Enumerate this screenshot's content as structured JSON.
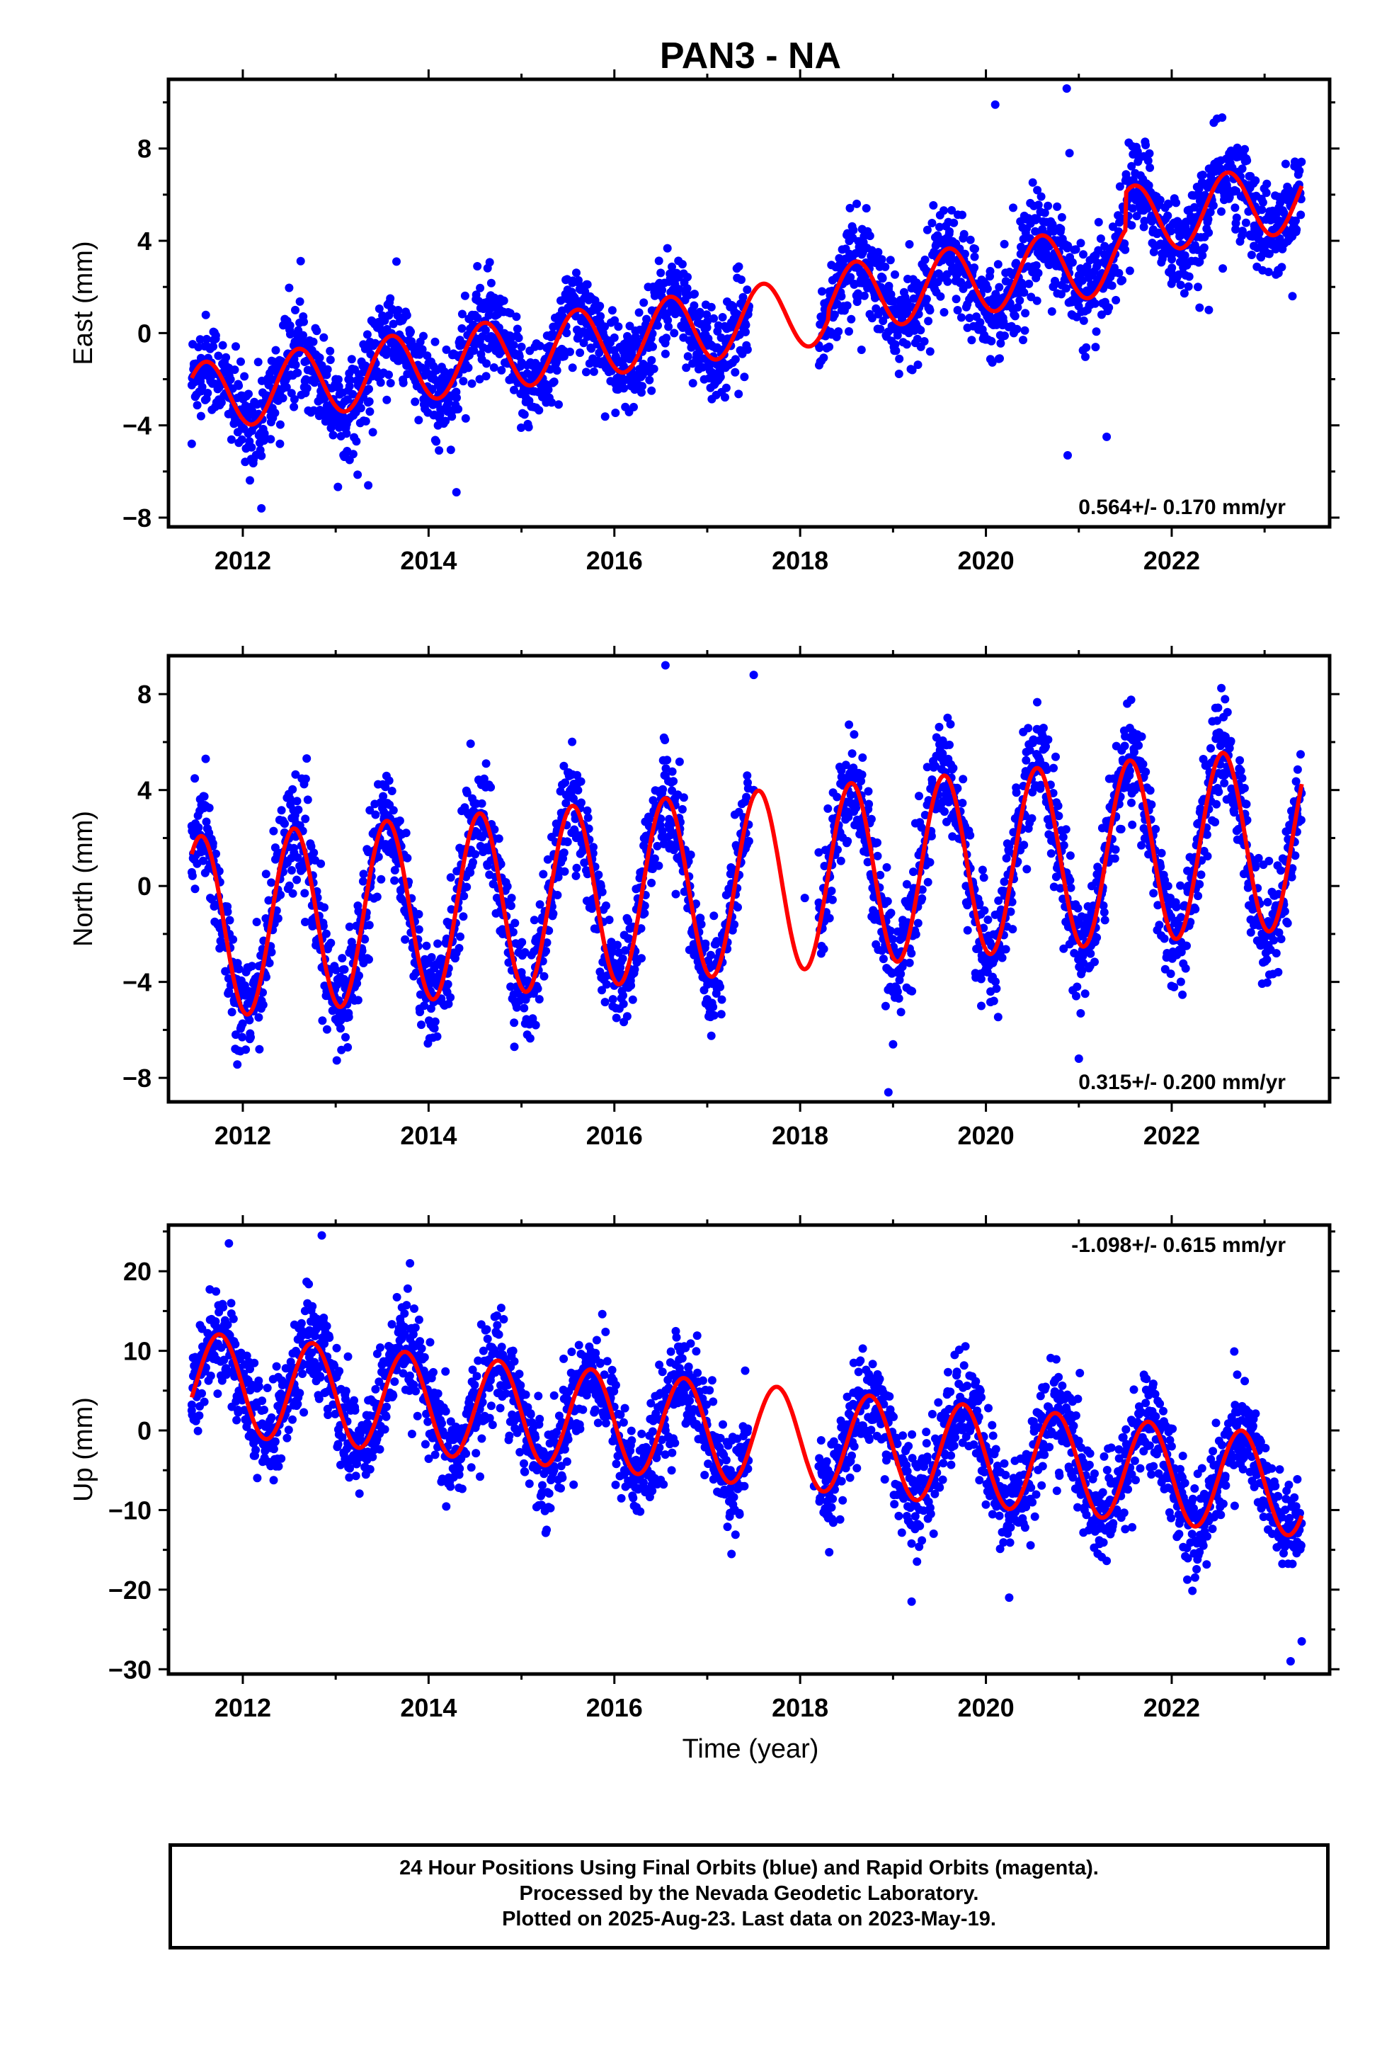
{
  "title": "PAN3 - NA",
  "xlabel": "Time (year)",
  "footer": {
    "line1": "24 Hour Positions Using Final Orbits (blue) and Rapid Orbits (magenta).",
    "line2": "Processed by the Nevada Geodetic Laboratory.",
    "line3": "Plotted on 2025-Aug-23. Last data on 2023-May-19."
  },
  "colors": {
    "data": "#0000ff",
    "model": "#ff0000",
    "frame": "#000000"
  },
  "chart_data": [
    {
      "type": "scatter",
      "component": "east",
      "ylabel": "East (mm)",
      "rate_label": "0.564+/- 0.170 mm/yr",
      "rate_position": "bottom-right",
      "xlim": [
        2011.2,
        2023.7
      ],
      "ylim": [
        -8.4,
        11.0
      ],
      "xticks": [
        2012,
        2014,
        2016,
        2018,
        2020,
        2022
      ],
      "yticks": [
        -8,
        -4,
        0,
        4,
        8
      ],
      "ytick_labels": [
        "−8",
        "−4",
        "0",
        "4",
        "8"
      ],
      "model": {
        "t0": 2011.45,
        "t1": 2023.4,
        "intercept_at_2017": 0.3,
        "rate": 0.564,
        "annual": {
          "amplitude": 1.5,
          "peak_phase": 0.6
        },
        "offsets": [
          {
            "year": 2018.3,
            "offset": 0.4
          },
          {
            "year": 2021.5,
            "offset": 1.6
          }
        ]
      },
      "points": [
        [
          2011.45,
          -4.8
        ],
        [
          2011.55,
          -3.6
        ],
        [
          2011.7,
          -2.2
        ],
        [
          2011.85,
          -2.8
        ],
        [
          2012.0,
          -3.3
        ],
        [
          2012.15,
          -3.6
        ],
        [
          2012.3,
          -4.6
        ],
        [
          2012.4,
          -4.8
        ],
        [
          2012.55,
          -3.2
        ],
        [
          2012.7,
          -1.6
        ],
        [
          2012.85,
          -1.4
        ],
        [
          2013.0,
          -2.0
        ],
        [
          2013.15,
          -2.3
        ],
        [
          2013.3,
          -3.8
        ],
        [
          2013.4,
          -4.3
        ],
        [
          2013.55,
          -2.9
        ],
        [
          2013.7,
          -1.0
        ],
        [
          2013.85,
          -0.8
        ],
        [
          2014.0,
          -1.3
        ],
        [
          2014.15,
          -2.0
        ],
        [
          2014.3,
          -3.3
        ],
        [
          2014.4,
          -3.7
        ],
        [
          2014.55,
          -2.0
        ],
        [
          2014.7,
          -0.2
        ],
        [
          2014.85,
          -0.1
        ],
        [
          2015.0,
          -0.6
        ],
        [
          2015.15,
          -1.3
        ],
        [
          2015.3,
          -2.8
        ],
        [
          2015.4,
          -3.1
        ],
        [
          2015.55,
          -1.5
        ],
        [
          2015.7,
          0.4
        ],
        [
          2015.85,
          0.3
        ],
        [
          2016.0,
          -0.2
        ],
        [
          2016.15,
          -0.9
        ],
        [
          2016.3,
          -2.3
        ],
        [
          2016.4,
          -2.5
        ],
        [
          2016.55,
          -0.9
        ],
        [
          2016.7,
          1.0
        ],
        [
          2016.85,
          0.9
        ],
        [
          2017.0,
          0.5
        ],
        [
          2017.15,
          -0.2
        ],
        [
          2017.3,
          -1.7
        ],
        [
          2017.4,
          -1.9
        ],
        [
          2018.55,
          0.6
        ],
        [
          2018.7,
          2.3
        ],
        [
          2018.85,
          2.0
        ],
        [
          2019.0,
          1.4
        ],
        [
          2019.15,
          0.9
        ],
        [
          2019.3,
          -0.6
        ],
        [
          2019.4,
          -0.8
        ],
        [
          2019.55,
          0.9
        ],
        [
          2019.7,
          2.6
        ],
        [
          2019.85,
          2.6
        ],
        [
          2020.0,
          2.1
        ],
        [
          2020.15,
          1.5
        ],
        [
          2020.3,
          0.0
        ],
        [
          2020.4,
          -0.3
        ],
        [
          2020.55,
          1.4
        ],
        [
          2020.7,
          3.2
        ],
        [
          2020.85,
          3.1
        ],
        [
          2021.0,
          2.5
        ],
        [
          2021.15,
          2.0
        ],
        [
          2021.55,
          2.7
        ],
        [
          2021.7,
          4.6
        ],
        [
          2021.85,
          3.8
        ],
        [
          2022.0,
          3.2
        ],
        [
          2022.15,
          2.5
        ],
        [
          2022.3,
          1.1
        ],
        [
          2022.4,
          1.0
        ],
        [
          2022.55,
          2.8
        ],
        [
          2022.7,
          5.0
        ],
        [
          2022.85,
          4.2
        ],
        [
          2023.0,
          3.6
        ],
        [
          2023.15,
          2.6
        ],
        [
          2023.3,
          1.6
        ],
        [
          2020.1,
          9.9
        ],
        [
          2020.87,
          10.6
        ],
        [
          2020.9,
          7.8
        ],
        [
          2020.88,
          -5.3
        ],
        [
          2021.3,
          -4.5
        ],
        [
          2012.2,
          -7.6
        ],
        [
          2014.3,
          -6.9
        ],
        [
          2013.35,
          -6.6
        ]
      ]
    },
    {
      "type": "scatter",
      "component": "north",
      "ylabel": "North (mm)",
      "rate_label": "0.315+/- 0.200 mm/yr",
      "rate_position": "bottom-right",
      "xlim": [
        2011.2,
        2023.7
      ],
      "ylim": [
        -9.0,
        9.6
      ],
      "xticks": [
        2012,
        2014,
        2016,
        2018,
        2020,
        2022
      ],
      "yticks": [
        -8,
        -4,
        0,
        4,
        8
      ],
      "ytick_labels": [
        "−8",
        "−4",
        "0",
        "4",
        "8"
      ],
      "model": {
        "t0": 2011.45,
        "t1": 2023.4,
        "intercept_at_2017": 0.0,
        "rate": 0.315,
        "annual": {
          "amplitude": 3.8,
          "peak_phase": 0.55
        },
        "offsets": []
      },
      "points": [
        [
          2011.45,
          2.5
        ],
        [
          2011.55,
          1.6
        ],
        [
          2011.65,
          -0.5
        ],
        [
          2011.75,
          -2.6
        ],
        [
          2011.85,
          -4.4
        ],
        [
          2011.95,
          -4.9
        ],
        [
          2012.05,
          -3.4
        ],
        [
          2012.15,
          -1.5
        ],
        [
          2012.25,
          0.5
        ],
        [
          2012.35,
          1.6
        ],
        [
          2012.45,
          2.6
        ],
        [
          2012.55,
          2.4
        ],
        [
          2012.65,
          0.8
        ],
        [
          2012.75,
          -1.4
        ],
        [
          2012.85,
          -3.4
        ],
        [
          2013.05,
          -3.8
        ],
        [
          2013.15,
          -1.7
        ],
        [
          2013.3,
          0.5
        ],
        [
          2013.45,
          2.3
        ],
        [
          2013.55,
          2.6
        ],
        [
          2013.7,
          -0.2
        ],
        [
          2013.85,
          -3.2
        ],
        [
          2013.95,
          -4.2
        ],
        [
          2014.05,
          -3.9
        ],
        [
          2014.2,
          -1.5
        ],
        [
          2014.35,
          0.9
        ],
        [
          2014.5,
          2.9
        ],
        [
          2014.6,
          2.8
        ],
        [
          2014.75,
          -0.1
        ],
        [
          2014.9,
          -3.1
        ],
        [
          2015.0,
          -3.6
        ],
        [
          2015.15,
          -2.3
        ],
        [
          2015.3,
          0.1
        ],
        [
          2015.45,
          2.6
        ],
        [
          2015.6,
          3.4
        ],
        [
          2015.75,
          1.0
        ],
        [
          2015.9,
          -2.6
        ],
        [
          2016.0,
          -3.6
        ],
        [
          2016.15,
          -2.2
        ],
        [
          2016.3,
          0.6
        ],
        [
          2016.45,
          3.0
        ],
        [
          2016.55,
          4.6
        ],
        [
          2016.7,
          2.2
        ],
        [
          2016.85,
          -2.6
        ],
        [
          2016.95,
          -3.8
        ],
        [
          2017.1,
          -2.3
        ],
        [
          2017.25,
          0.5
        ],
        [
          2017.4,
          2.8
        ],
        [
          2017.5,
          4.0
        ],
        [
          2018.05,
          -0.5
        ],
        [
          2018.2,
          1.4
        ],
        [
          2018.35,
          2.8
        ],
        [
          2018.5,
          4.4
        ],
        [
          2018.65,
          2.4
        ],
        [
          2018.8,
          -1.4
        ],
        [
          2018.95,
          -3.5
        ],
        [
          2019.05,
          -4.4
        ],
        [
          2019.2,
          -0.4
        ],
        [
          2019.35,
          2.2
        ],
        [
          2019.5,
          4.1
        ],
        [
          2019.65,
          3.0
        ],
        [
          2019.8,
          -0.8
        ],
        [
          2019.95,
          -5.0
        ],
        [
          2020.05,
          -4.4
        ],
        [
          2020.2,
          -0.4
        ],
        [
          2020.35,
          2.5
        ],
        [
          2020.5,
          5.0
        ],
        [
          2020.65,
          3.5
        ],
        [
          2020.8,
          -0.1
        ],
        [
          2020.95,
          -2.8
        ],
        [
          2021.1,
          -1.9
        ],
        [
          2021.25,
          0.6
        ],
        [
          2021.4,
          2.9
        ],
        [
          2021.55,
          4.8
        ],
        [
          2021.7,
          2.4
        ],
        [
          2021.85,
          -0.8
        ],
        [
          2021.95,
          -2.8
        ],
        [
          2022.1,
          -1.3
        ],
        [
          2022.25,
          1.2
        ],
        [
          2022.4,
          3.2
        ],
        [
          2022.55,
          4.7
        ],
        [
          2022.7,
          2.3
        ],
        [
          2022.85,
          -1.4
        ],
        [
          2022.95,
          -2.4
        ],
        [
          2023.1,
          -0.4
        ],
        [
          2023.25,
          1.6
        ],
        [
          2023.35,
          3.0
        ],
        [
          2016.55,
          9.2
        ],
        [
          2017.5,
          8.8
        ],
        [
          2018.95,
          -8.6
        ],
        [
          2019.0,
          -6.6
        ],
        [
          2021.0,
          -7.2
        ],
        [
          2011.6,
          5.3
        ]
      ]
    },
    {
      "type": "scatter",
      "component": "up",
      "ylabel": "Up (mm)",
      "rate_label": "-1.098+/- 0.615 mm/yr",
      "rate_position": "top-right",
      "xlim": [
        2011.2,
        2023.7
      ],
      "ylim": [
        -30.6,
        25.8
      ],
      "xticks": [
        2012,
        2014,
        2016,
        2018,
        2020,
        2022
      ],
      "yticks": [
        -30,
        -20,
        -10,
        0,
        10,
        20
      ],
      "ytick_labels": [
        "−30",
        "−20",
        "−10",
        "0",
        "10",
        "20"
      ],
      "model": {
        "t0": 2011.45,
        "t1": 2023.4,
        "intercept_at_2017": 0.0,
        "rate": -1.098,
        "annual": {
          "amplitude": 6.3,
          "peak_phase": 0.75
        },
        "offsets": []
      },
      "points": [
        [
          2011.45,
          2.5
        ],
        [
          2011.55,
          7.0
        ],
        [
          2011.65,
          11.0
        ],
        [
          2011.8,
          13.0
        ],
        [
          2011.95,
          9.5
        ],
        [
          2012.05,
          6.0
        ],
        [
          2012.15,
          3.5
        ],
        [
          2012.3,
          -0.5
        ],
        [
          2012.4,
          1.5
        ],
        [
          2012.55,
          7.0
        ],
        [
          2012.7,
          12.0
        ],
        [
          2012.8,
          14.0
        ],
        [
          2012.95,
          8.0
        ],
        [
          2013.1,
          4.5
        ],
        [
          2013.25,
          0.0
        ],
        [
          2013.35,
          -3.0
        ],
        [
          2013.5,
          2.5
        ],
        [
          2013.65,
          8.0
        ],
        [
          2013.8,
          11.5
        ],
        [
          2013.95,
          7.5
        ],
        [
          2014.1,
          3.0
        ],
        [
          2014.25,
          -1.0
        ],
        [
          2014.35,
          -3.5
        ],
        [
          2014.5,
          1.5
        ],
        [
          2014.65,
          6.5
        ],
        [
          2014.8,
          9.5
        ],
        [
          2014.95,
          6.0
        ],
        [
          2015.1,
          2.0
        ],
        [
          2015.25,
          -3.0
        ],
        [
          2015.35,
          -5.0
        ],
        [
          2015.5,
          0.5
        ],
        [
          2015.65,
          6.0
        ],
        [
          2015.8,
          9.0
        ],
        [
          2015.95,
          5.0
        ],
        [
          2016.1,
          1.0
        ],
        [
          2016.25,
          -4.0
        ],
        [
          2016.4,
          -6.0
        ],
        [
          2016.55,
          0.0
        ],
        [
          2016.7,
          5.0
        ],
        [
          2016.8,
          8.0
        ],
        [
          2016.95,
          4.0
        ],
        [
          2017.1,
          -1.0
        ],
        [
          2017.25,
          -5.0
        ],
        [
          2017.4,
          -7.0
        ],
        [
          2018.15,
          -7.0
        ],
        [
          2018.3,
          -5.0
        ],
        [
          2018.5,
          0.0
        ],
        [
          2018.65,
          3.5
        ],
        [
          2018.8,
          5.5
        ],
        [
          2018.95,
          1.0
        ],
        [
          2019.1,
          -3.5
        ],
        [
          2019.25,
          -9.5
        ],
        [
          2019.4,
          -7.0
        ],
        [
          2019.55,
          -1.0
        ],
        [
          2019.7,
          3.0
        ],
        [
          2019.85,
          2.0
        ],
        [
          2020.0,
          -2.0
        ],
        [
          2020.15,
          -7.0
        ],
        [
          2020.3,
          -11.0
        ],
        [
          2020.45,
          -9.0
        ],
        [
          2020.6,
          -3.0
        ],
        [
          2020.75,
          2.0
        ],
        [
          2020.9,
          0.0
        ],
        [
          2021.05,
          -4.0
        ],
        [
          2021.2,
          -9.0
        ],
        [
          2021.35,
          -12.0
        ],
        [
          2021.5,
          -3.0
        ],
        [
          2021.65,
          3.0
        ],
        [
          2021.8,
          2.0
        ],
        [
          2021.95,
          -3.0
        ],
        [
          2022.1,
          -7.0
        ],
        [
          2022.25,
          -11.0
        ],
        [
          2022.35,
          -12.0
        ],
        [
          2022.5,
          -6.0
        ],
        [
          2022.65,
          -1.0
        ],
        [
          2022.8,
          1.0
        ],
        [
          2022.95,
          -2.0
        ],
        [
          2023.1,
          -7.0
        ],
        [
          2023.25,
          -12.0
        ],
        [
          2023.35,
          -14.0
        ],
        [
          2011.85,
          23.5
        ],
        [
          2012.85,
          24.5
        ],
        [
          2013.8,
          21.0
        ],
        [
          2020.25,
          -21.0
        ],
        [
          2023.28,
          -29.0
        ],
        [
          2023.4,
          -26.5
        ],
        [
          2019.2,
          -21.5
        ]
      ]
    }
  ]
}
